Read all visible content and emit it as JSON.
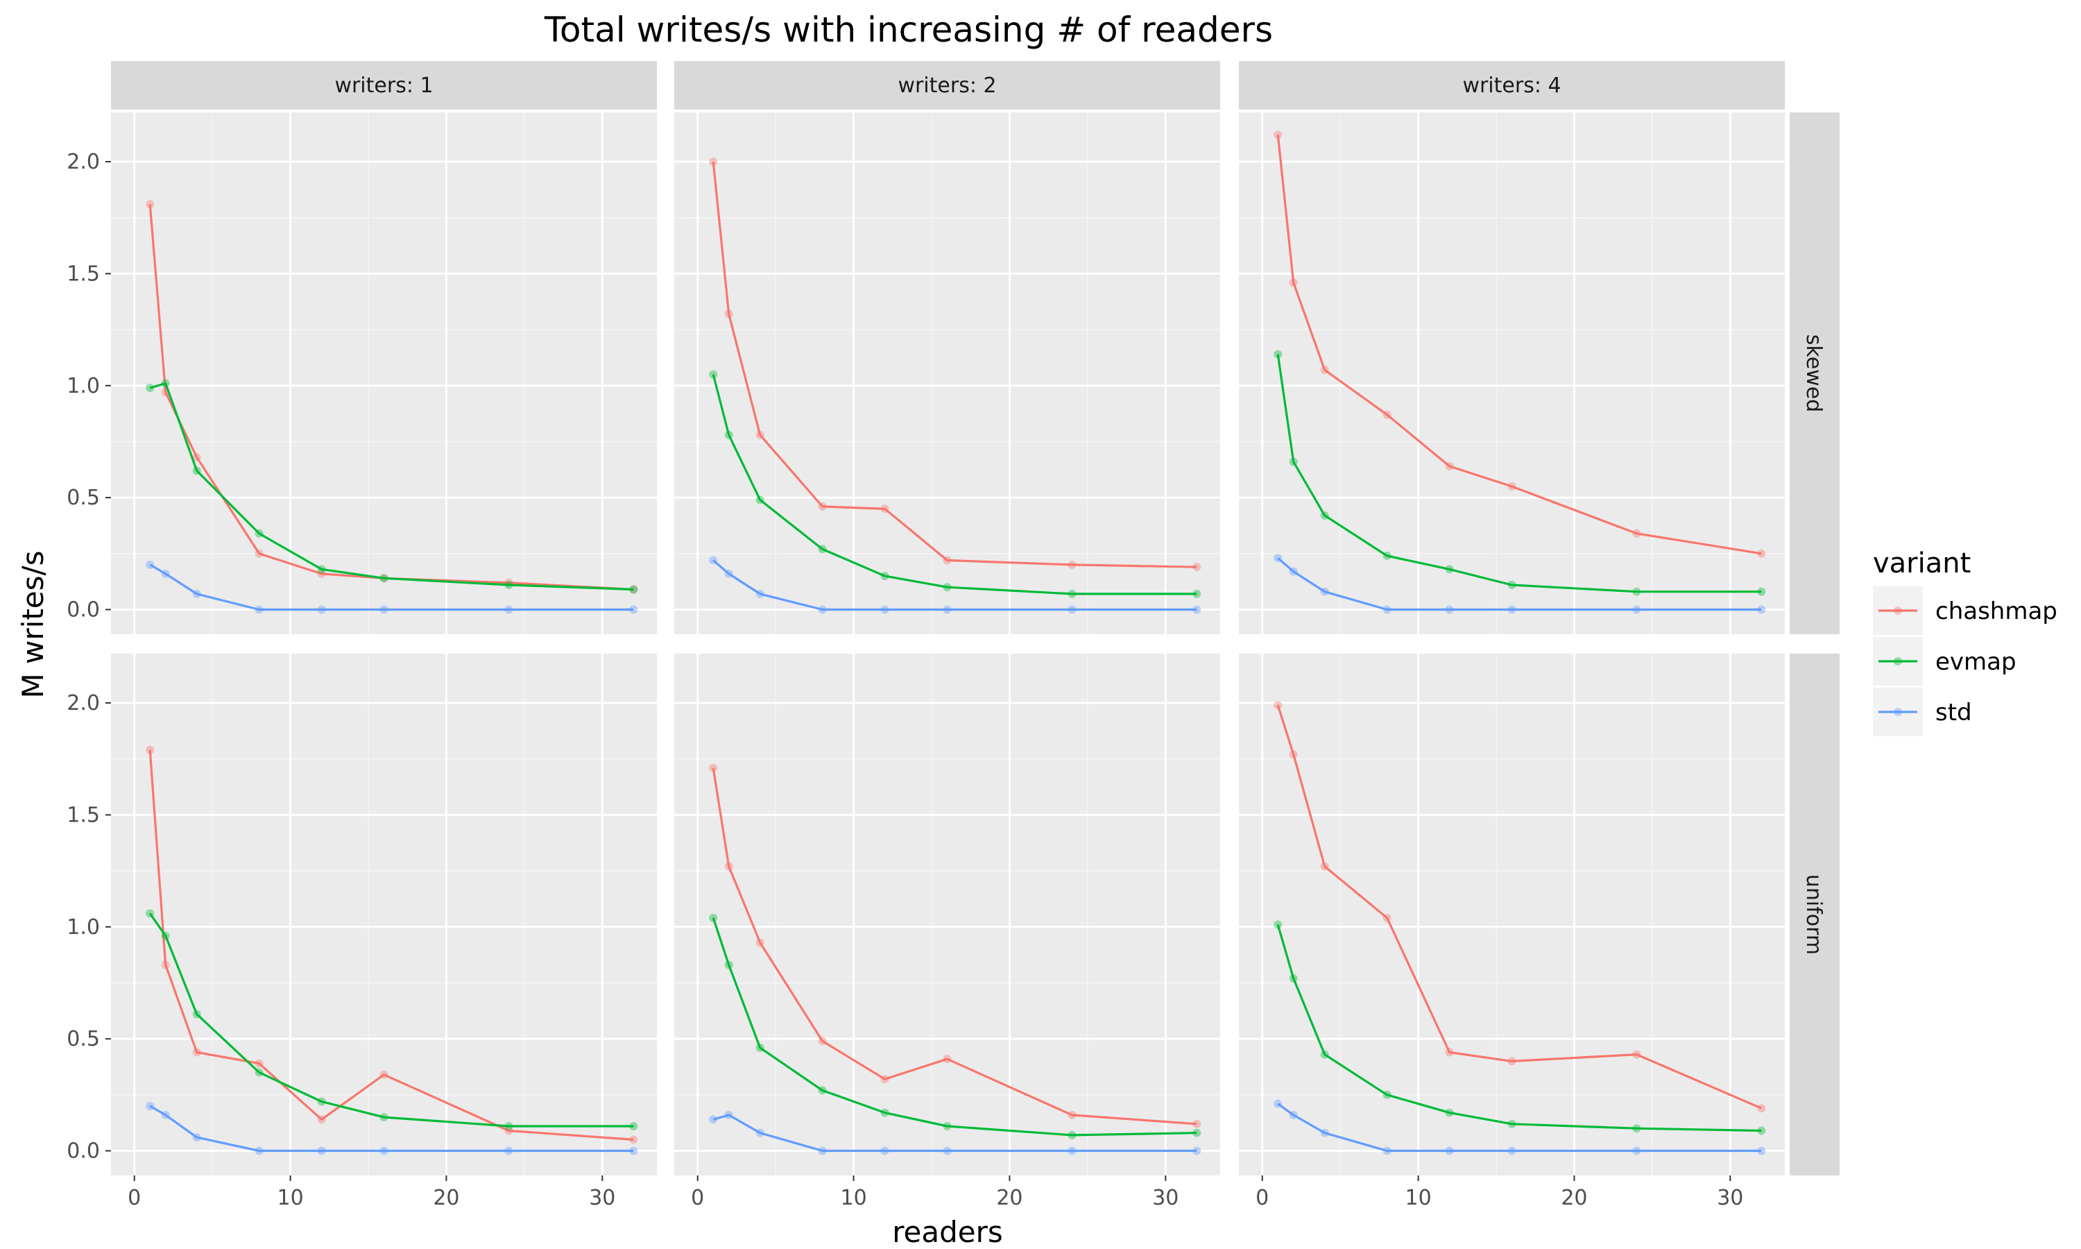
{
  "chart_data": {
    "type": "line",
    "title": "Total writes/s with increasing # of readers",
    "xlabel": "readers",
    "ylabel": "M writes/s",
    "xlim": [
      -1.5,
      33.5
    ],
    "ylim": [
      -0.11,
      2.22
    ],
    "x_ticks": [
      0,
      10,
      20,
      30
    ],
    "y_ticks": [
      0.0,
      0.5,
      1.0,
      1.5,
      2.0
    ],
    "x_tick_labels": [
      "0",
      "10",
      "20",
      "30"
    ],
    "y_tick_labels": [
      "0.0",
      "0.5",
      "1.0",
      "1.5",
      "2.0"
    ],
    "grid": true,
    "legend_position": "right",
    "legend_title": "variant",
    "columns": [
      "writers: 1",
      "writers: 2",
      "writers: 4"
    ],
    "rows": [
      "skewed",
      "uniform"
    ],
    "x": [
      1,
      2,
      4,
      8,
      12,
      16,
      24,
      32
    ],
    "series_meta": [
      {
        "name": "chashmap",
        "color": "#F8766D"
      },
      {
        "name": "evmap",
        "color": "#00BA38"
      },
      {
        "name": "std",
        "color": "#619CFF"
      }
    ],
    "panels": [
      {
        "row": "skewed",
        "col": "writers: 1",
        "series": [
          {
            "name": "chashmap",
            "values": [
              1.81,
              0.97,
              0.68,
              0.25,
              0.16,
              0.14,
              0.12,
              0.09
            ]
          },
          {
            "name": "evmap",
            "values": [
              0.99,
              1.01,
              0.62,
              0.34,
              0.18,
              0.14,
              0.11,
              0.09
            ]
          },
          {
            "name": "std",
            "values": [
              0.2,
              0.16,
              0.07,
              0.0,
              0.0,
              0.0,
              0.0,
              0.0
            ]
          }
        ]
      },
      {
        "row": "skewed",
        "col": "writers: 2",
        "series": [
          {
            "name": "chashmap",
            "values": [
              2.0,
              1.32,
              0.78,
              0.46,
              0.45,
              0.22,
              0.2,
              0.19
            ]
          },
          {
            "name": "evmap",
            "values": [
              1.05,
              0.78,
              0.49,
              0.27,
              0.15,
              0.1,
              0.07,
              0.07
            ]
          },
          {
            "name": "std",
            "values": [
              0.22,
              0.16,
              0.07,
              0.0,
              0.0,
              0.0,
              0.0,
              0.0
            ]
          }
        ]
      },
      {
        "row": "skewed",
        "col": "writers: 4",
        "series": [
          {
            "name": "chashmap",
            "values": [
              2.12,
              1.46,
              1.07,
              0.87,
              0.64,
              0.55,
              0.34,
              0.25
            ]
          },
          {
            "name": "evmap",
            "values": [
              1.14,
              0.66,
              0.42,
              0.24,
              0.18,
              0.11,
              0.08,
              0.08
            ]
          },
          {
            "name": "std",
            "values": [
              0.23,
              0.17,
              0.08,
              0.0,
              0.0,
              0.0,
              0.0,
              0.0
            ]
          }
        ]
      },
      {
        "row": "uniform",
        "col": "writers: 1",
        "series": [
          {
            "name": "chashmap",
            "values": [
              1.79,
              0.83,
              0.44,
              0.39,
              0.14,
              0.34,
              0.09,
              0.05
            ]
          },
          {
            "name": "evmap",
            "values": [
              1.06,
              0.96,
              0.61,
              0.35,
              0.22,
              0.15,
              0.11,
              0.11
            ]
          },
          {
            "name": "std",
            "values": [
              0.2,
              0.16,
              0.06,
              0.0,
              0.0,
              0.0,
              0.0,
              0.0
            ]
          }
        ]
      },
      {
        "row": "uniform",
        "col": "writers: 2",
        "series": [
          {
            "name": "chashmap",
            "values": [
              1.71,
              1.27,
              0.93,
              0.49,
              0.32,
              0.41,
              0.16,
              0.12
            ]
          },
          {
            "name": "evmap",
            "values": [
              1.04,
              0.83,
              0.46,
              0.27,
              0.17,
              0.11,
              0.07,
              0.08
            ]
          },
          {
            "name": "std",
            "values": [
              0.14,
              0.16,
              0.08,
              0.0,
              0.0,
              0.0,
              0.0,
              0.0
            ]
          }
        ]
      },
      {
        "row": "uniform",
        "col": "writers: 4",
        "series": [
          {
            "name": "chashmap",
            "values": [
              1.99,
              1.77,
              1.27,
              1.04,
              0.44,
              0.4,
              0.43,
              0.19
            ]
          },
          {
            "name": "evmap",
            "values": [
              1.01,
              0.77,
              0.43,
              0.25,
              0.17,
              0.12,
              0.1,
              0.09
            ]
          },
          {
            "name": "std",
            "values": [
              0.21,
              0.16,
              0.08,
              0.0,
              0.0,
              0.0,
              0.0,
              0.0
            ]
          }
        ]
      }
    ]
  }
}
